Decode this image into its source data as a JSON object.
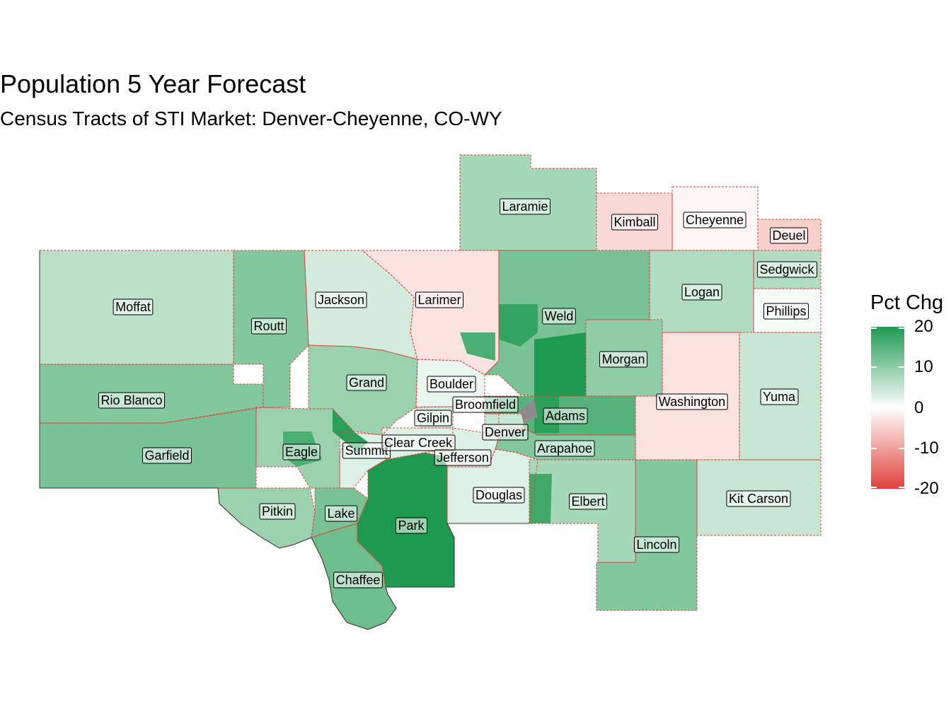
{
  "title": "Population 5 Year Forecast",
  "subtitle": "Census Tracts of STI Market: Denver-Cheyenne, CO-WY",
  "legend": {
    "title": "Pct Chg",
    "ticks": [
      20,
      10,
      0,
      -10,
      -20
    ],
    "tick_labels": [
      "20",
      "10",
      "0",
      "-10",
      "-20"
    ],
    "colors": {
      "high": "#1e9a50",
      "mid": "#ffffff",
      "low": "#e0413a"
    }
  },
  "colors": {
    "county_border": "#e0413a",
    "missing": "#8c8c8c"
  },
  "counties": [
    {
      "name": "Laramie",
      "pct": 8
    },
    {
      "name": "Kimball",
      "pct": -4
    },
    {
      "name": "Cheyenne",
      "pct": -1
    },
    {
      "name": "Deuel",
      "pct": -5
    },
    {
      "name": "Sedgwick",
      "pct": 7
    },
    {
      "name": "Phillips",
      "pct": 1
    },
    {
      "name": "Moffat",
      "pct": 6
    },
    {
      "name": "Routt",
      "pct": 11
    },
    {
      "name": "Jackson",
      "pct": 4
    },
    {
      "name": "Larimer",
      "pct": -3
    },
    {
      "name": "Weld",
      "pct": 12
    },
    {
      "name": "Logan",
      "pct": 7
    },
    {
      "name": "Morgan",
      "pct": 10
    },
    {
      "name": "Grand",
      "pct": 9
    },
    {
      "name": "Boulder",
      "pct": 2
    },
    {
      "name": "Broomfield",
      "pct": 12
    },
    {
      "name": "Rio Blanco",
      "pct": 11
    },
    {
      "name": "Washington",
      "pct": -3
    },
    {
      "name": "Yuma",
      "pct": 5
    },
    {
      "name": "Gilpin",
      "pct": 4
    },
    {
      "name": "Adams",
      "pct": 15
    },
    {
      "name": "Denver",
      "pct": 5
    },
    {
      "name": "Eagle",
      "pct": 9
    },
    {
      "name": "Summit",
      "pct": 3
    },
    {
      "name": "Clear Creek",
      "pct": 3
    },
    {
      "name": "Garfield",
      "pct": 12
    },
    {
      "name": "Arapahoe",
      "pct": 11
    },
    {
      "name": "Jefferson",
      "pct": 3
    },
    {
      "name": "Douglas",
      "pct": 3
    },
    {
      "name": "Elbert",
      "pct": 8
    },
    {
      "name": "Kit Carson",
      "pct": 5
    },
    {
      "name": "Pitkin",
      "pct": 9
    },
    {
      "name": "Lake",
      "pct": 12
    },
    {
      "name": "Park",
      "pct": 20
    },
    {
      "name": "Lincoln",
      "pct": 11
    },
    {
      "name": "Chaffee",
      "pct": 13
    }
  ]
}
